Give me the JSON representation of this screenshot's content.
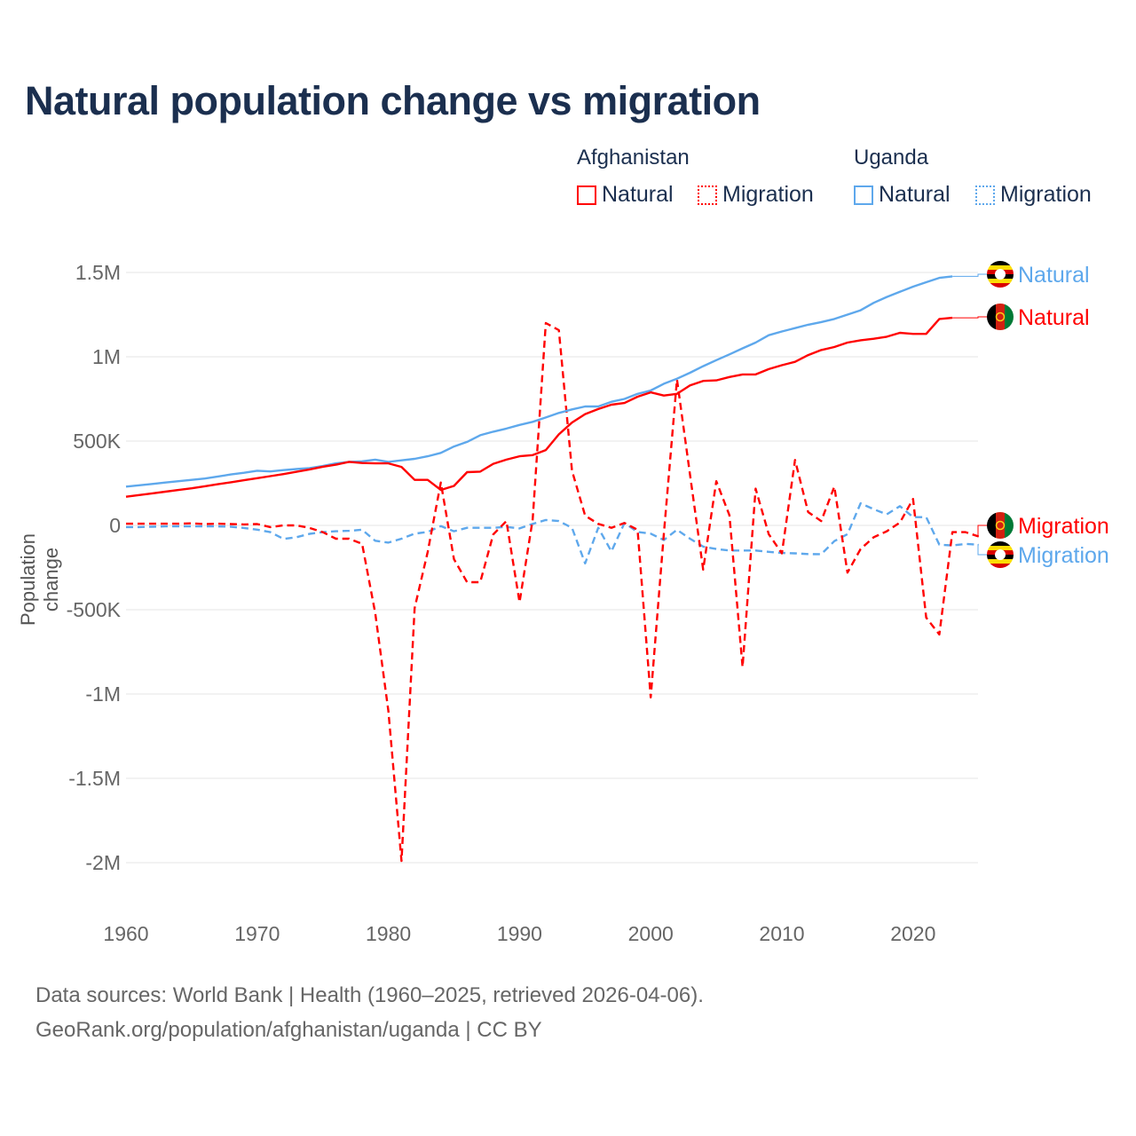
{
  "title": "Natural population change vs migration",
  "legend": {
    "groups": [
      {
        "name": "Afghanistan",
        "items": [
          "Natural",
          "Migration"
        ],
        "color": "#ff0000"
      },
      {
        "name": "Uganda",
        "items": [
          "Natural",
          "Migration"
        ],
        "color": "#5ea8ec"
      }
    ]
  },
  "footer": {
    "line1": "Data sources: World Bank | Health (1960–2025, retrieved 2026-04-06).",
    "line2": "GeoRank.org/population/afghanistan/uganda | CC BY"
  },
  "chart_data": {
    "type": "line",
    "title": "Natural population change vs migration",
    "xlabel": "",
    "ylabel": "Population change",
    "xlim": [
      1960,
      2025
    ],
    "ylim": [
      -2000000,
      1500000
    ],
    "x_ticks": [
      1960,
      1970,
      1980,
      1990,
      2000,
      2010,
      2020
    ],
    "x_tick_labels": [
      "1960",
      "1970",
      "1980",
      "1990",
      "2000",
      "2010",
      "2020"
    ],
    "y_ticks": [
      1500000,
      1000000,
      500000,
      0,
      -500000,
      -1000000,
      -1500000,
      -2000000
    ],
    "y_tick_labels": [
      "1.5M",
      "1M",
      "500K",
      "0",
      "-500K",
      "-1M",
      "-1.5M",
      "-2M"
    ],
    "grid": true,
    "legend_position": "top-right",
    "series": [
      {
        "name": "Uganda Natural",
        "label": "Natural",
        "country": "Uganda",
        "color": "#5ea8ec",
        "dash": false,
        "start_year": 1960,
        "values": [
          0.23,
          0.238,
          0.246,
          0.254,
          0.262,
          0.27,
          0.278,
          0.29,
          0.302,
          0.312,
          0.324,
          0.32,
          0.328,
          0.334,
          0.34,
          0.352,
          0.368,
          0.377,
          0.38,
          0.39,
          0.377,
          0.386,
          0.395,
          0.41,
          0.43,
          0.468,
          0.495,
          0.535,
          0.556,
          0.574,
          0.596,
          0.614,
          0.64,
          0.667,
          0.688,
          0.705,
          0.705,
          0.733,
          0.75,
          0.78,
          0.8,
          0.84,
          0.87,
          0.905,
          0.944,
          0.98,
          1.014,
          1.05,
          1.084,
          1.128,
          1.15,
          1.17,
          1.19,
          1.206,
          1.224,
          1.25,
          1.276,
          1.32,
          1.355,
          1.385,
          1.416,
          1.442,
          1.468,
          1.477
        ]
      },
      {
        "name": "Afghanistan Natural",
        "label": "Natural",
        "country": "Afghanistan",
        "color": "#ff0000",
        "dash": false,
        "start_year": 1960,
        "values": [
          0.17,
          0.18,
          0.19,
          0.2,
          0.21,
          0.22,
          0.232,
          0.244,
          0.256,
          0.268,
          0.28,
          0.292,
          0.304,
          0.318,
          0.332,
          0.348,
          0.36,
          0.377,
          0.37,
          0.368,
          0.368,
          0.347,
          0.27,
          0.27,
          0.21,
          0.234,
          0.316,
          0.319,
          0.365,
          0.39,
          0.41,
          0.417,
          0.447,
          0.54,
          0.61,
          0.66,
          0.69,
          0.716,
          0.726,
          0.763,
          0.789,
          0.77,
          0.78,
          0.83,
          0.857,
          0.86,
          0.88,
          0.895,
          0.895,
          0.927,
          0.95,
          0.97,
          1.01,
          1.04,
          1.058,
          1.084,
          1.098,
          1.107,
          1.119,
          1.142,
          1.136,
          1.136,
          1.224,
          1.231
        ]
      },
      {
        "name": "Afghanistan Migration",
        "label": "Migration",
        "country": "Afghanistan",
        "color": "#ff0000",
        "dash": true,
        "start_year": 1960,
        "values": [
          0.01,
          0.01,
          0.01,
          0.01,
          0.01,
          0.012,
          0.008,
          0.01,
          0.008,
          0.006,
          0.008,
          -0.01,
          0.0,
          0.0,
          -0.015,
          -0.04,
          -0.079,
          -0.079,
          -0.109,
          -0.52,
          -1.1,
          -1.99,
          -0.49,
          -0.158,
          0.254,
          -0.2,
          -0.337,
          -0.337,
          -0.053,
          0.026,
          -0.456,
          0.035,
          1.2,
          1.158,
          0.325,
          0.058,
          0.009,
          -0.014,
          0.014,
          -0.026,
          -1.02,
          -0.05,
          0.865,
          0.3,
          -0.262,
          0.262,
          0.06,
          -0.84,
          0.218,
          -0.052,
          -0.166,
          0.388,
          0.079,
          0.026,
          0.23,
          -0.28,
          -0.14,
          -0.07,
          -0.035,
          0.017,
          0.157,
          -0.547,
          -0.647,
          -0.04,
          -0.04,
          -0.066
        ]
      },
      {
        "name": "Uganda Migration",
        "label": "Migration",
        "country": "Uganda",
        "color": "#5ea8ec",
        "dash": true,
        "start_year": 1960,
        "values": [
          -0.01,
          -0.01,
          -0.008,
          -0.006,
          -0.005,
          -0.005,
          -0.006,
          -0.006,
          -0.008,
          -0.015,
          -0.025,
          -0.04,
          -0.08,
          -0.07,
          -0.05,
          -0.04,
          -0.035,
          -0.032,
          -0.026,
          -0.091,
          -0.102,
          -0.079,
          -0.049,
          -0.039,
          -0.004,
          -0.035,
          -0.014,
          -0.014,
          -0.014,
          -0.009,
          -0.018,
          0.009,
          0.032,
          0.026,
          -0.014,
          -0.225,
          -0.014,
          -0.154,
          0.014,
          -0.039,
          -0.049,
          -0.087,
          -0.026,
          -0.079,
          -0.126,
          -0.14,
          -0.149,
          -0.149,
          -0.149,
          -0.157,
          -0.163,
          -0.166,
          -0.17,
          -0.171,
          -0.093,
          -0.052,
          0.131,
          0.096,
          0.066,
          0.114,
          0.049,
          0.049,
          -0.114,
          -0.119,
          -0.11,
          -0.114
        ]
      }
    ],
    "value_unit": "millions",
    "end_labels": [
      {
        "text": "Natural",
        "country": "Uganda",
        "color": "#5ea8ec"
      },
      {
        "text": "Natural",
        "country": "Afghanistan",
        "color": "#ff0000"
      },
      {
        "text": "Migration",
        "country": "Afghanistan",
        "color": "#ff0000"
      },
      {
        "text": "Migration",
        "country": "Uganda",
        "color": "#5ea8ec"
      }
    ]
  }
}
